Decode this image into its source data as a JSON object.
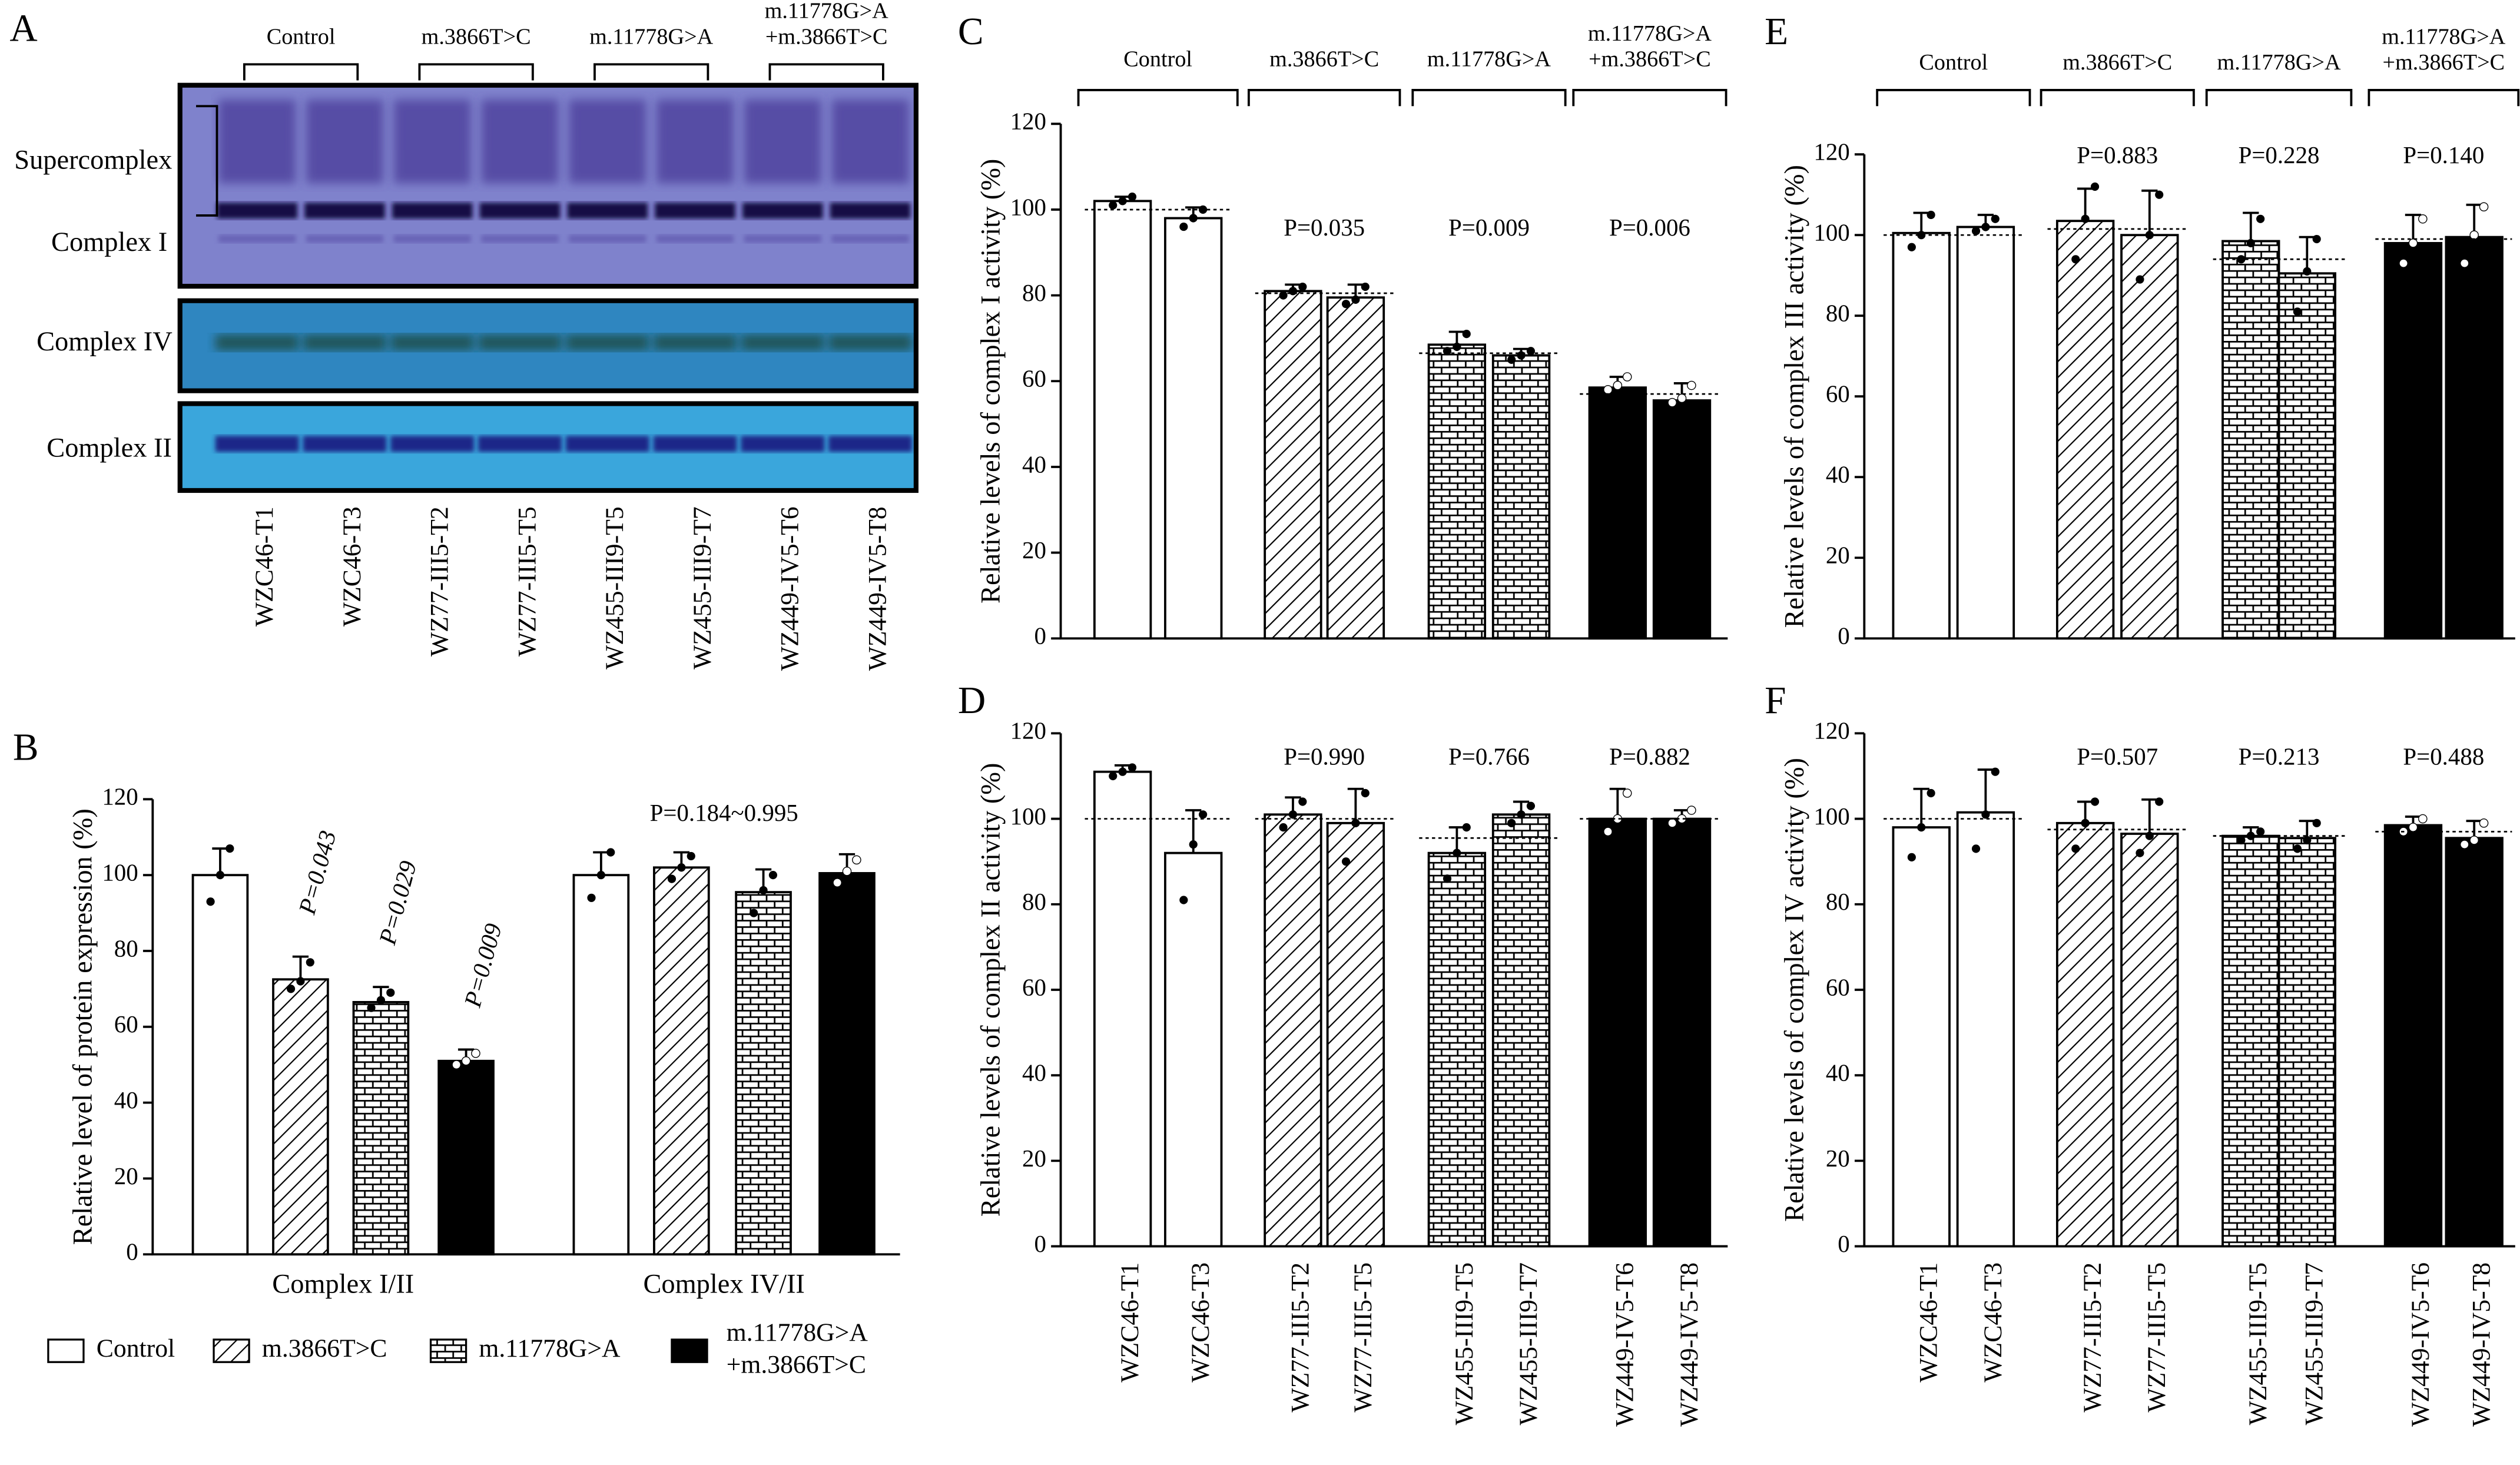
{
  "blot": {
    "panel": "A",
    "groups": [
      [
        "Control"
      ],
      [
        "m.3866T>C"
      ],
      [
        "m.11778G>A"
      ],
      [
        "m.11778G>A",
        "+m.3866T>C"
      ]
    ],
    "rows": [
      "Supercomplex",
      "Complex I",
      "Complex IV",
      "Complex II"
    ],
    "lanes": [
      "WZC46-T1",
      "WZC46-T3",
      "WZ77-III5-T2",
      "WZ77-III5-T5",
      "WZ455-III9-T5",
      "WZ455-III9-T7",
      "WZ449-IV5-T6",
      "WZ449-IV5-T8"
    ]
  },
  "chart_data": [
    {
      "type": "grouped_bar",
      "panel": "B",
      "ylabel": "Relative level of protein expression (%)",
      "categories": [
        "Complex I/II",
        "Complex IV/II"
      ],
      "category_p_labels": [
        null,
        "P=0.184~0.995"
      ],
      "series": [
        {
          "name": [
            "Control"
          ],
          "pattern": "none",
          "values": [
            100,
            100
          ],
          "errors": [
            7,
            6
          ],
          "points": [
            [
              93,
              100,
              107
            ],
            [
              94,
              100,
              106
            ]
          ],
          "p_labels": [
            null,
            null
          ]
        },
        {
          "name": [
            "m.3866T>C"
          ],
          "pattern": "diagonal",
          "values": [
            72.5,
            102
          ],
          "errors": [
            6,
            4
          ],
          "points": [
            [
              70,
              72,
              77
            ],
            [
              99,
              102,
              105
            ]
          ],
          "p_labels": [
            "P=0.043",
            null
          ]
        },
        {
          "name": [
            "m.11778G>A"
          ],
          "pattern": "brick",
          "values": [
            66.5,
            95.5
          ],
          "errors": [
            4,
            6
          ],
          "points": [
            [
              65,
              67,
              69
            ],
            [
              90,
              96,
              100
            ]
          ],
          "p_labels": [
            "P=0.029",
            null
          ]
        },
        {
          "name": [
            "m.11778G>A",
            "+m.3866T>C"
          ],
          "pattern": "solid",
          "values": [
            51,
            100.5
          ],
          "errors": [
            3,
            5
          ],
          "points": [
            [
              50,
              51,
              53
            ],
            [
              98,
              101,
              104
            ]
          ],
          "p_labels": [
            "P=0.009",
            null
          ]
        }
      ],
      "ylim": [
        0,
        120
      ],
      "yticks": [
        0,
        20,
        40,
        60,
        80,
        100,
        120
      ],
      "legend": "bottom"
    },
    {
      "type": "bar",
      "panel": "C",
      "ylabel": "Relative levels of complex I activity (%)",
      "values": [
        102,
        98,
        81,
        79.5,
        68.5,
        66,
        58.5,
        55.5
      ],
      "errors": [
        1,
        2.5,
        1.5,
        3,
        3,
        1.5,
        2.5,
        4
      ],
      "points": [
        [
          101,
          102,
          103
        ],
        [
          96,
          98,
          100
        ],
        [
          80,
          81,
          82
        ],
        [
          78,
          79,
          82
        ],
        [
          67,
          68,
          71
        ],
        [
          65,
          66,
          67
        ],
        [
          58,
          59,
          61
        ],
        [
          55,
          56,
          59
        ]
      ],
      "groups": [
        {
          "label": [
            "Control"
          ],
          "pattern": "none",
          "mean": 100
        },
        {
          "label": [
            "m.3866T>C"
          ],
          "pattern": "diagonal",
          "mean": 80.5,
          "p_label": "P=0.035"
        },
        {
          "label": [
            "m.11778G>A"
          ],
          "pattern": "brick",
          "mean": 66.5,
          "p_label": "P=0.009"
        },
        {
          "label": [
            "m.11778G>A",
            "+m.3866T>C"
          ],
          "pattern": "solid",
          "mean": 57,
          "p_label": "P=0.006"
        }
      ],
      "ylim": [
        0,
        120
      ],
      "yticks": [
        0,
        20,
        40,
        60,
        80,
        100,
        120
      ]
    },
    {
      "type": "bar",
      "panel": "D",
      "ylabel": "Relative levels of complex II activity (%)",
      "categories": [
        "WZC46-T1",
        "WZC46-T3",
        "WZ77-III5-T2",
        "WZ77-III5-T5",
        "WZ455-III9-T5",
        "WZ455-III9-T7",
        "WZ449-IV5-T6",
        "WZ449-IV5-T8"
      ],
      "values": [
        111,
        92,
        101,
        99,
        92,
        101,
        100,
        100
      ],
      "errors": [
        1.5,
        10,
        4,
        8,
        6,
        3,
        7,
        2
      ],
      "points": [
        [
          110,
          111,
          112
        ],
        [
          81,
          94,
          101
        ],
        [
          98,
          101,
          104
        ],
        [
          90,
          99,
          106
        ],
        [
          86,
          92,
          98
        ],
        [
          99,
          101,
          103
        ],
        [
          97,
          100,
          106
        ],
        [
          99,
          100,
          102
        ]
      ],
      "groups": [
        {
          "pattern": "none",
          "mean": 100
        },
        {
          "pattern": "diagonal",
          "mean": 100,
          "p_label": "P=0.990"
        },
        {
          "pattern": "brick",
          "mean": 95.5,
          "p_label": "P=0.766"
        },
        {
          "pattern": "solid",
          "mean": 100,
          "p_label": "P=0.882"
        }
      ],
      "ylim": [
        0,
        120
      ],
      "yticks": [
        0,
        20,
        40,
        60,
        80,
        100,
        120
      ]
    },
    {
      "type": "bar",
      "panel": "E",
      "ylabel": "Relative levels of complex III activity (%)",
      "values": [
        100.5,
        102,
        103.5,
        100,
        98.5,
        90.5,
        98,
        99.5
      ],
      "errors": [
        5,
        3,
        8,
        11,
        7,
        9,
        7,
        8
      ],
      "points": [
        [
          97,
          100,
          105
        ],
        [
          101,
          102,
          104
        ],
        [
          94,
          104,
          112
        ],
        [
          89,
          100,
          110
        ],
        [
          94,
          98,
          104
        ],
        [
          81,
          91,
          99
        ],
        [
          93,
          98,
          104
        ],
        [
          93,
          100,
          107
        ]
      ],
      "groups": [
        {
          "label": [
            "Control"
          ],
          "pattern": "none",
          "mean": 100
        },
        {
          "label": [
            "m.3866T>C"
          ],
          "pattern": "diagonal",
          "mean": 101.5,
          "p_label": "P=0.883"
        },
        {
          "label": [
            "m.11778G>A"
          ],
          "pattern": "brick",
          "mean": 94,
          "p_label": "P=0.228"
        },
        {
          "label": [
            "m.11778G>A",
            "+m.3866T>C"
          ],
          "pattern": "solid",
          "mean": 99,
          "p_label": "P=0.140"
        }
      ],
      "ylim": [
        0,
        120
      ],
      "yticks": [
        0,
        20,
        40,
        60,
        80,
        100,
        120
      ]
    },
    {
      "type": "bar",
      "panel": "F",
      "ylabel": "Relative levels of complex IV activity (%)",
      "categories": [
        "WZC46-T1",
        "WZC46-T3",
        "WZ77-III5-T2",
        "WZ77-III5-T5",
        "WZ455-III9-T5",
        "WZ455-III9-T7",
        "WZ449-IV5-T6",
        "WZ449-IV5-T8"
      ],
      "values": [
        98,
        101.5,
        99,
        96.5,
        96,
        95.5,
        98.5,
        95.5
      ],
      "errors": [
        9,
        10,
        5,
        8,
        2,
        4,
        2,
        4
      ],
      "points": [
        [
          91,
          98,
          106
        ],
        [
          93,
          101,
          111
        ],
        [
          93,
          99,
          104
        ],
        [
          92,
          96,
          104
        ],
        [
          95,
          96,
          97
        ],
        [
          93,
          95,
          99
        ],
        [
          97,
          98,
          100
        ],
        [
          94,
          95,
          99
        ]
      ],
      "groups": [
        {
          "pattern": "none",
          "mean": 100
        },
        {
          "pattern": "diagonal",
          "mean": 97.5,
          "p_label": "P=0.507"
        },
        {
          "pattern": "brick",
          "mean": 96,
          "p_label": "P=0.213"
        },
        {
          "pattern": "solid",
          "mean": 97,
          "p_label": "P=0.488"
        }
      ],
      "ylim": [
        0,
        120
      ],
      "yticks": [
        0,
        20,
        40,
        60,
        80,
        100,
        120
      ]
    }
  ]
}
